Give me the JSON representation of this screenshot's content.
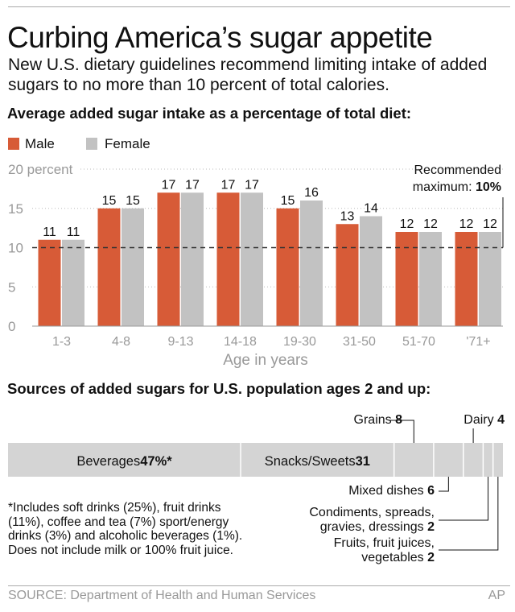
{
  "title": "Curbing America’s sugar appetite",
  "subtitle": "New U.S. dietary guidelines recommend limiting intake of added sugars to no more than 10 percent of total calories.",
  "chart_data": [
    {
      "type": "bar",
      "title": "Average added sugar intake as a percentage of total diet:",
      "xlabel": "Age in years",
      "ylabel": "",
      "y_unit_label": "20 percent",
      "ylim": [
        0,
        20
      ],
      "yticks": [
        "0",
        "5",
        "10",
        "15",
        "20 percent"
      ],
      "ytick_values": [
        0,
        5,
        10,
        15,
        20
      ],
      "grid": "dotted horizontal",
      "legend": "top-left",
      "categories": [
        "1-3",
        "4-8",
        "9-13",
        "14-18",
        "19-30",
        "31-50",
        "51-70",
        "'71+"
      ],
      "series": [
        {
          "name": "Male",
          "color": "#d75b37",
          "values": [
            11,
            15,
            17,
            17,
            15,
            13,
            12,
            12
          ]
        },
        {
          "name": "Female",
          "color": "#c2c2c2",
          "values": [
            11,
            15,
            17,
            17,
            16,
            14,
            12,
            12
          ]
        }
      ],
      "reference_line": {
        "value": 10,
        "label_line1": "Recommended",
        "label_line2": "maximum: ",
        "label_value": "10%"
      }
    },
    {
      "type": "bar",
      "subtype": "stacked-horizontal",
      "title": "Sources of added sugars for U.S. population ages 2 and up:",
      "color": "#d4d4d4",
      "segments": [
        {
          "label": "Beverages",
          "value_label": "47%*",
          "value": 47
        },
        {
          "label": "Snacks/Sweets",
          "value_label": "31",
          "value": 31
        },
        {
          "label": "Grains",
          "value_label": "8",
          "value": 8
        },
        {
          "label": "Mixed dishes",
          "value_label": "6",
          "value": 6
        },
        {
          "label": "Dairy",
          "value_label": "4",
          "value": 4
        },
        {
          "label": "Condiments, spreads, gravies, dressings",
          "line1": "Condiments, spreads,",
          "line2": "gravies, dressings",
          "value_label": "2",
          "value": 2
        },
        {
          "label": "Fruits, fruit juices, vegetables",
          "line1": "Fruits, fruit juices,",
          "line2": "vegetables",
          "value_label": "2",
          "value": 2
        }
      ]
    }
  ],
  "footnote": "*Includes soft drinks (25%), fruit drinks (11%), coffee and tea (7%) sport/energy drinks (3%) and alcoholic beverages (1%). Does not include milk or 100% fruit juice.",
  "source": "SOURCE: Department of Health and Human Services",
  "credit": "AP"
}
